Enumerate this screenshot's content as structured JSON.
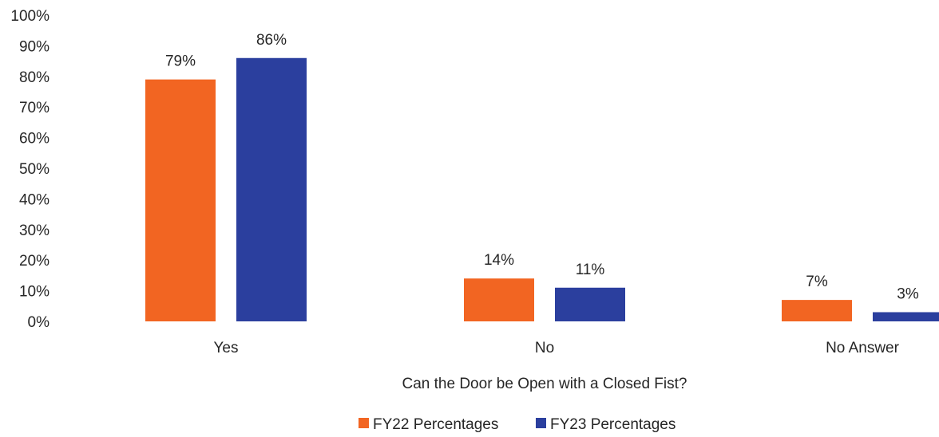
{
  "chart_data": {
    "type": "bar",
    "title": "",
    "xlabel": "Can the Door be Open with a Closed Fist?",
    "ylabel": "",
    "ylim": [
      0,
      100
    ],
    "ytick_step": 10,
    "y_format": "percent",
    "categories": [
      "Yes",
      "No",
      "No Answer"
    ],
    "series": [
      {
        "name": "FY22 Percentages",
        "color": "#F26522",
        "values": [
          79,
          14,
          7
        ],
        "labels": [
          "79%",
          "14%",
          "7%"
        ]
      },
      {
        "name": "FY23 Percentages",
        "color": "#2B3F9E",
        "values": [
          86,
          11,
          3
        ],
        "labels": [
          "86%",
          "11%",
          "3%"
        ]
      }
    ],
    "legend_position": "bottom",
    "grid": false
  }
}
